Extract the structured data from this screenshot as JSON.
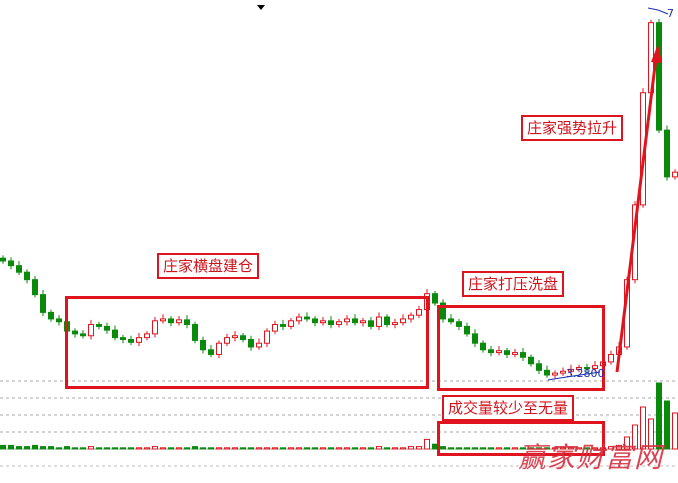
{
  "chart_data": {
    "type": "candlestick",
    "title": "",
    "xlabel": "",
    "ylabel": "",
    "grid": true,
    "colors": {
      "up": "#e0141e",
      "down": "#0a8a0a",
      "annotation": "#e0141e",
      "label_blue": "#1a2fb0"
    },
    "close": [
      4.5,
      4.45,
      4.38,
      4.3,
      4.14,
      3.95,
      3.88,
      3.85,
      3.75,
      3.72,
      3.7,
      3.82,
      3.8,
      3.76,
      3.68,
      3.66,
      3.63,
      3.68,
      3.72,
      3.86,
      3.88,
      3.84,
      3.87,
      3.82,
      3.65,
      3.55,
      3.5,
      3.62,
      3.68,
      3.7,
      3.66,
      3.58,
      3.62,
      3.75,
      3.82,
      3.8,
      3.86,
      3.9,
      3.88,
      3.84,
      3.86,
      3.82,
      3.85,
      3.88,
      3.84,
      3.86,
      3.8,
      3.9,
      3.82,
      3.84,
      3.88,
      3.92,
      3.98,
      4.15,
      4.05,
      3.88,
      3.85,
      3.8,
      3.72,
      3.62,
      3.55,
      3.52,
      3.54,
      3.5,
      3.52,
      3.47,
      3.4,
      3.33,
      3.28,
      3.3,
      3.32,
      3.34,
      3.36,
      3.35,
      3.38,
      3.42,
      3.5,
      3.58,
      4.3,
      5.1,
      6.3,
      7.05,
      5.9,
      5.4,
      5.45
    ],
    "volume": [
      3,
      3,
      2,
      2,
      3,
      2,
      2,
      1,
      2,
      1,
      1,
      2,
      1,
      1,
      1,
      1,
      1,
      1,
      1,
      2,
      1,
      1,
      1,
      1,
      2,
      1,
      1,
      1,
      1,
      1,
      1,
      1,
      1,
      1,
      1,
      1,
      1,
      1,
      1,
      1,
      1,
      1,
      1,
      1,
      1,
      1,
      1,
      2,
      1,
      1,
      1,
      2,
      2,
      8,
      4,
      2,
      1,
      1,
      1,
      1,
      1,
      1,
      1,
      1,
      1,
      1,
      1,
      1,
      1,
      1,
      1,
      1,
      1,
      1,
      1,
      1,
      2,
      3,
      10,
      20,
      35,
      25,
      55,
      40,
      30
    ],
    "low_price_label": "3.2800",
    "high_price_label": "7"
  },
  "annotations": {
    "accumulation": "庄家横盘建仓",
    "shakeout": "庄家打压洗盘",
    "markup": "庄家强势拉升",
    "volume_note": "成交量较少至无量"
  },
  "watermark": "赢家财富网"
}
